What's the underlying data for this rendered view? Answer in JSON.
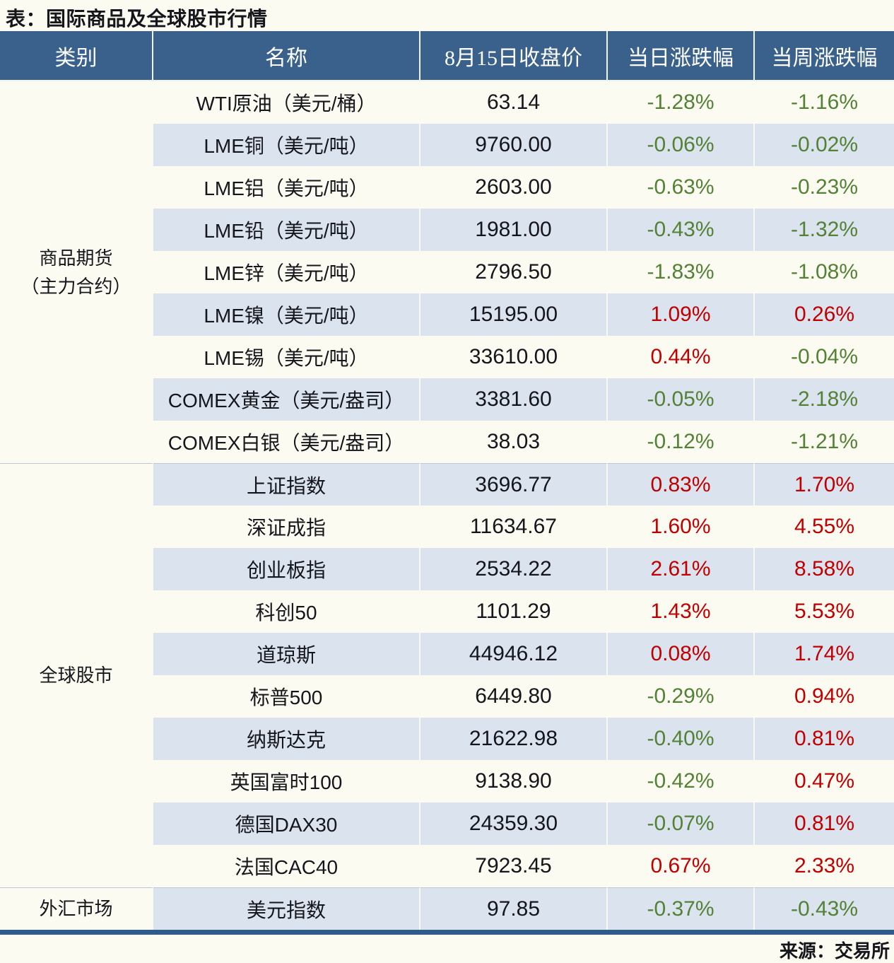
{
  "title": "表：国际商品及全球股市行情",
  "source": "来源：交易所",
  "colors": {
    "header_bg": "#3A618C",
    "stripe_blue": "#DAE3EE",
    "positive_red": "#C00000",
    "negative_green": "#538135",
    "text": "#15151C",
    "paper": "#FCFBF1",
    "table_bottom_border": "#2F5B8C",
    "section_divider": "#BCC8D8"
  },
  "table": {
    "headers": [
      "类别",
      "名称",
      "8月15日收盘价",
      "当日涨跌幅",
      "当周涨跌幅"
    ],
    "sections": [
      {
        "category": "商品期货\n（主力合约）",
        "rows": [
          {
            "name": "WTI原油（美元/桶）",
            "close": "63.14",
            "day": "-1.28%",
            "week": "-1.16%"
          },
          {
            "name": "LME铜（美元/吨）",
            "close": "9760.00",
            "day": "-0.06%",
            "week": "-0.02%"
          },
          {
            "name": "LME铝（美元/吨）",
            "close": "2603.00",
            "day": "-0.63%",
            "week": "-0.23%"
          },
          {
            "name": "LME铅（美元/吨）",
            "close": "1981.00",
            "day": "-0.43%",
            "week": "-1.32%"
          },
          {
            "name": "LME锌（美元/吨）",
            "close": "2796.50",
            "day": "-1.83%",
            "week": "-1.08%"
          },
          {
            "name": "LME镍（美元/吨）",
            "close": "15195.00",
            "day": "1.09%",
            "week": "0.26%"
          },
          {
            "name": "LME锡（美元/吨）",
            "close": "33610.00",
            "day": "0.44%",
            "week": "-0.04%"
          },
          {
            "name": "COMEX黄金（美元/盎司）",
            "close": "3381.60",
            "day": "-0.05%",
            "week": "-2.18%"
          },
          {
            "name": "COMEX白银（美元/盎司）",
            "close": "38.03",
            "day": "-0.12%",
            "week": "-1.21%"
          }
        ]
      },
      {
        "category": "全球股市",
        "rows": [
          {
            "name": "上证指数",
            "close": "3696.77",
            "day": "0.83%",
            "week": "1.70%"
          },
          {
            "name": "深证成指",
            "close": "11634.67",
            "day": "1.60%",
            "week": "4.55%"
          },
          {
            "name": "创业板指",
            "close": "2534.22",
            "day": "2.61%",
            "week": "8.58%"
          },
          {
            "name": "科创50",
            "close": "1101.29",
            "day": "1.43%",
            "week": "5.53%"
          },
          {
            "name": "道琼斯",
            "close": "44946.12",
            "day": "0.08%",
            "week": "1.74%"
          },
          {
            "name": "标普500",
            "close": "6449.80",
            "day": "-0.29%",
            "week": "0.94%"
          },
          {
            "name": "纳斯达克",
            "close": "21622.98",
            "day": "-0.40%",
            "week": "0.81%"
          },
          {
            "name": "英国富时100",
            "close": "9138.90",
            "day": "-0.42%",
            "week": "0.47%"
          },
          {
            "name": "德国DAX30",
            "close": "24359.30",
            "day": "-0.07%",
            "week": "0.81%"
          },
          {
            "name": "法国CAC40",
            "close": "7923.45",
            "day": "0.67%",
            "week": "2.33%"
          }
        ]
      },
      {
        "category": "外汇市场",
        "rows": [
          {
            "name": "美元指数",
            "close": "97.85",
            "day": "-0.37%",
            "week": "-0.43%"
          }
        ]
      }
    ]
  },
  "chart_data": {
    "type": "table",
    "title": "表：国际商品及全球股市行情",
    "columns": [
      "类别",
      "名称",
      "8月15日收盘价",
      "当日涨跌幅",
      "当周涨跌幅"
    ],
    "rows": [
      [
        "商品期货（主力合约）",
        "WTI原油（美元/桶）",
        63.14,
        "-1.28%",
        "-1.16%"
      ],
      [
        "商品期货（主力合约）",
        "LME铜（美元/吨）",
        9760.0,
        "-0.06%",
        "-0.02%"
      ],
      [
        "商品期货（主力合约）",
        "LME铝（美元/吨）",
        2603.0,
        "-0.63%",
        "-0.23%"
      ],
      [
        "商品期货（主力合约）",
        "LME铅（美元/吨）",
        1981.0,
        "-0.43%",
        "-1.32%"
      ],
      [
        "商品期货（主力合约）",
        "LME锌（美元/吨）",
        2796.5,
        "-1.83%",
        "-1.08%"
      ],
      [
        "商品期货（主力合约）",
        "LME镍（美元/吨）",
        15195.0,
        "1.09%",
        "0.26%"
      ],
      [
        "商品期货（主力合约）",
        "LME锡（美元/吨）",
        33610.0,
        "0.44%",
        "-0.04%"
      ],
      [
        "商品期货（主力合约）",
        "COMEX黄金（美元/盎司）",
        3381.6,
        "-0.05%",
        "-2.18%"
      ],
      [
        "商品期货（主力合约）",
        "COMEX白银（美元/盎司）",
        38.03,
        "-0.12%",
        "-1.21%"
      ],
      [
        "全球股市",
        "上证指数",
        3696.77,
        "0.83%",
        "1.70%"
      ],
      [
        "全球股市",
        "深证成指",
        11634.67,
        "1.60%",
        "4.55%"
      ],
      [
        "全球股市",
        "创业板指",
        2534.22,
        "2.61%",
        "8.58%"
      ],
      [
        "全球股市",
        "科创50",
        1101.29,
        "1.43%",
        "5.53%"
      ],
      [
        "全球股市",
        "道琼斯",
        44946.12,
        "0.08%",
        "1.74%"
      ],
      [
        "全球股市",
        "标普500",
        6449.8,
        "-0.29%",
        "0.94%"
      ],
      [
        "全球股市",
        "纳斯达克",
        21622.98,
        "-0.40%",
        "0.81%"
      ],
      [
        "全球股市",
        "英国富时100",
        9138.9,
        "-0.42%",
        "0.47%"
      ],
      [
        "全球股市",
        "德国DAX30",
        24359.3,
        "-0.07%",
        "0.81%"
      ],
      [
        "全球股市",
        "法国CAC40",
        7923.45,
        "0.67%",
        "2.33%"
      ],
      [
        "外汇市场",
        "美元指数",
        97.85,
        "-0.37%",
        "-0.43%"
      ]
    ],
    "source": "来源：交易所",
    "color_coding": {
      "red": "positive change",
      "green": "negative change"
    },
    "legend_position": "none",
    "grid": "row-striping"
  }
}
